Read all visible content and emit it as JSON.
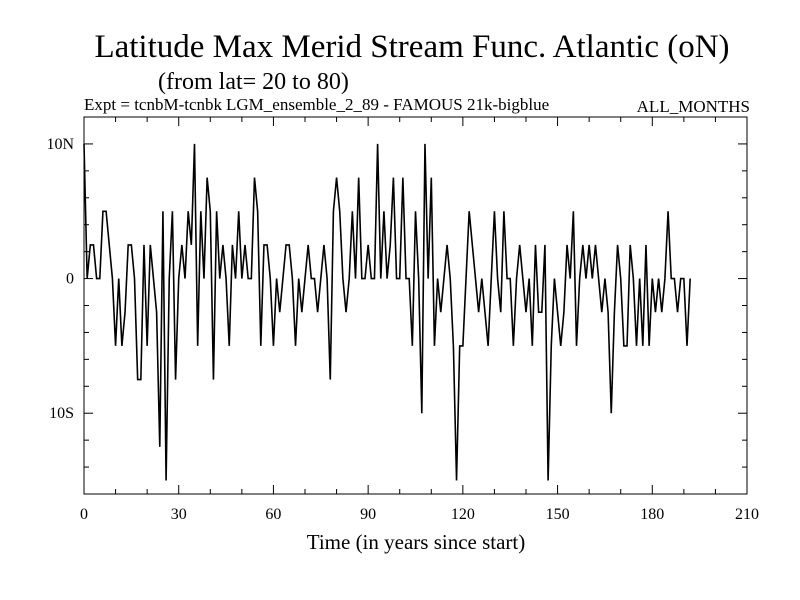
{
  "chart_data": {
    "type": "line",
    "title": "Latitude Max Merid Stream Func. Atlantic (oN)",
    "subtitle": "(from lat= 20 to 80)",
    "expt_label": "Expt = tcnbM-tcnbk",
    "run_label": "LGM_ensemble_2_89 - FAMOUS 21k-bigblue",
    "months_label": "ALL_MONTHS",
    "xlabel": "Time (in years since start)",
    "ylabel": "",
    "xlim": [
      0,
      210
    ],
    "ylim": [
      -16,
      12
    ],
    "x_ticks": [
      0,
      30,
      60,
      90,
      120,
      150,
      180,
      210
    ],
    "x_tick_labels": [
      "0",
      "30",
      "60",
      "90",
      "120",
      "150",
      "180",
      "210"
    ],
    "y_ticks": [
      10,
      0,
      -10
    ],
    "y_tick_labels": [
      "10N",
      "0",
      "10S"
    ],
    "series": [
      {
        "name": "Latitude of max meridional stream function",
        "color": "#000000",
        "x_start": 0,
        "x_step": 1,
        "values": [
          10,
          0,
          2.5,
          2.5,
          0,
          0,
          5,
          5,
          2.5,
          0,
          -5,
          0,
          -5,
          -2.5,
          2.5,
          2.5,
          0,
          -7.5,
          -7.5,
          2.5,
          -5,
          2.5,
          0,
          -2.5,
          -12.5,
          5,
          -15,
          0,
          5,
          -7.5,
          0,
          2.5,
          0,
          5,
          2.5,
          10,
          -5,
          5,
          0,
          7.5,
          5,
          -7.5,
          5,
          0,
          2.5,
          0,
          -5,
          2.5,
          0,
          5,
          0,
          2.5,
          0,
          0,
          7.5,
          5,
          -5,
          2.5,
          2.5,
          0,
          -5,
          0,
          -2.5,
          0,
          2.5,
          2.5,
          0,
          -5,
          0,
          -2.5,
          0,
          2.5,
          0,
          0,
          -2.5,
          0,
          2.5,
          0,
          -7.5,
          5,
          7.5,
          5,
          0,
          -2.5,
          0,
          5,
          0,
          7.5,
          0,
          0,
          2.5,
          0,
          0,
          10,
          0,
          5,
          0,
          2.5,
          7.5,
          0,
          0,
          7.5,
          0,
          0,
          -5,
          5,
          0,
          -10,
          10,
          0,
          7.5,
          -5,
          0,
          -2.5,
          0,
          2.5,
          0,
          -5,
          -15,
          -5,
          -5,
          0,
          5,
          2.5,
          0,
          -2.5,
          0,
          -2.5,
          -5,
          0,
          5,
          0,
          -2.5,
          5,
          0,
          0,
          -5,
          0,
          2.5,
          0,
          -2.5,
          0,
          -5,
          2.5,
          -2.5,
          -2.5,
          2.5,
          -15,
          -5,
          0,
          -2.5,
          -5,
          -2.5,
          2.5,
          0,
          5,
          -5,
          0,
          2.5,
          0,
          2.5,
          0,
          2.5,
          0,
          -2.5,
          0,
          -2.5,
          -10,
          -2.5,
          2.5,
          0,
          -5,
          -5,
          2.5,
          0,
          -5,
          0,
          -5,
          2.5,
          -5,
          0,
          -2.5,
          0,
          -2.5,
          0,
          5,
          0,
          0,
          -2.5,
          0,
          0,
          -5,
          0
        ]
      }
    ]
  }
}
